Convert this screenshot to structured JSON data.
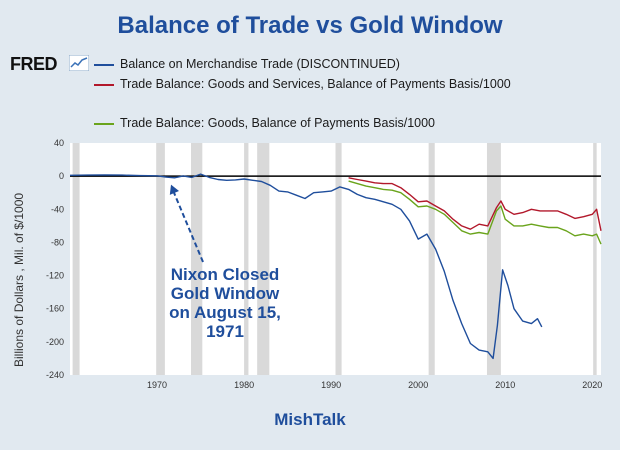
{
  "title": "Balance of Trade vs Gold Window",
  "logo": "FRED",
  "logo_icon": "fred-chart-icon",
  "footer": "MishTalk",
  "annotation": [
    "Nixon Closed",
    "Gold Window",
    "on August 15,",
    "1971"
  ],
  "chart_data": {
    "type": "line",
    "title": "Balance of Trade vs Gold Window",
    "ylabel": "Billions of Dollars , Mil. of $/1000",
    "xlabel": "",
    "xlim": [
      1960,
      2021
    ],
    "ylim": [
      -240,
      40
    ],
    "grid": false,
    "legend_position": "top",
    "x_ticks": [
      "1970",
      "1980",
      "1990",
      "2000",
      "2010",
      "2020"
    ],
    "y_ticks": [
      "40",
      "0",
      "-40",
      "-80",
      "-120",
      "-160",
      "-200",
      "-240"
    ],
    "recessions": [
      [
        1960.3,
        1961.1
      ],
      [
        1969.9,
        1970.9
      ],
      [
        1973.9,
        1975.2
      ],
      [
        1980.0,
        1980.5
      ],
      [
        1981.5,
        1982.9
      ],
      [
        1990.5,
        1991.2
      ],
      [
        2001.2,
        2001.9
      ],
      [
        2007.9,
        2009.5
      ],
      [
        2020.1,
        2020.5
      ]
    ],
    "annotation": "Nixon Closed Gold Window on August 15, 1971",
    "annotation_arrow_target": {
      "x": 1971.6,
      "y": -3
    },
    "series": [
      {
        "name": "Balance on Merchandise Trade (DISCONTINUED)",
        "color": "#1f4e9c",
        "points": [
          [
            1960,
            1
          ],
          [
            1962,
            1.2
          ],
          [
            1964,
            1.5
          ],
          [
            1966,
            1.2
          ],
          [
            1968,
            0.6
          ],
          [
            1970,
            0.4
          ],
          [
            1971,
            -1
          ],
          [
            1972,
            -2
          ],
          [
            1973,
            0.3
          ],
          [
            1974,
            -1.5
          ],
          [
            1975,
            2.5
          ],
          [
            1976,
            -1.5
          ],
          [
            1977,
            -4
          ],
          [
            1978,
            -5
          ],
          [
            1979,
            -4.5
          ],
          [
            1980,
            -3.5
          ],
          [
            1981,
            -5
          ],
          [
            1982,
            -6.5
          ],
          [
            1983,
            -11
          ],
          [
            1984,
            -18
          ],
          [
            1985,
            -19
          ],
          [
            1986,
            -23
          ],
          [
            1987,
            -27
          ],
          [
            1988,
            -20
          ],
          [
            1989,
            -19
          ],
          [
            1990,
            -18
          ],
          [
            1991,
            -13
          ],
          [
            1992,
            -16
          ],
          [
            1993,
            -22
          ],
          [
            1994,
            -26
          ],
          [
            1995,
            -28
          ],
          [
            1996,
            -31
          ],
          [
            1997,
            -34
          ],
          [
            1998,
            -40
          ],
          [
            1999,
            -54
          ],
          [
            2000,
            -76
          ],
          [
            2001,
            -70
          ],
          [
            2002,
            -88
          ],
          [
            2003,
            -115
          ],
          [
            2004,
            -150
          ],
          [
            2005,
            -178
          ],
          [
            2006,
            -202
          ],
          [
            2007,
            -210
          ],
          [
            2008,
            -212
          ],
          [
            2008.6,
            -220
          ],
          [
            2009.1,
            -180
          ],
          [
            2009.7,
            -113
          ],
          [
            2010.3,
            -132
          ],
          [
            2011,
            -160
          ],
          [
            2012,
            -175
          ],
          [
            2013,
            -178
          ],
          [
            2013.7,
            -172
          ],
          [
            2014.2,
            -182
          ]
        ]
      },
      {
        "name": "Trade Balance: Goods and Services, Balance of Payments Basis/1000",
        "color": "#b2182b",
        "points": [
          [
            1992,
            -2
          ],
          [
            1993,
            -4
          ],
          [
            1994,
            -6
          ],
          [
            1995,
            -8
          ],
          [
            1996,
            -9
          ],
          [
            1997,
            -9
          ],
          [
            1998,
            -14
          ],
          [
            1999,
            -22
          ],
          [
            2000,
            -31
          ],
          [
            2001,
            -30
          ],
          [
            2002,
            -36
          ],
          [
            2003,
            -42
          ],
          [
            2004,
            -52
          ],
          [
            2005,
            -60
          ],
          [
            2006,
            -64
          ],
          [
            2007,
            -58
          ],
          [
            2008,
            -60
          ],
          [
            2009,
            -38
          ],
          [
            2009.5,
            -30
          ],
          [
            2010,
            -40
          ],
          [
            2011,
            -46
          ],
          [
            2012,
            -44
          ],
          [
            2013,
            -40
          ],
          [
            2014,
            -42
          ],
          [
            2015,
            -42
          ],
          [
            2016,
            -42
          ],
          [
            2017,
            -46
          ],
          [
            2018,
            -51
          ],
          [
            2019,
            -49
          ],
          [
            2020,
            -46
          ],
          [
            2020.5,
            -40
          ],
          [
            2021,
            -66
          ]
        ]
      },
      {
        "name": "Trade Balance: Goods, Balance of Payments Basis/1000",
        "color": "#6aa41c",
        "points": [
          [
            1992,
            -6
          ],
          [
            1993,
            -9
          ],
          [
            1994,
            -12
          ],
          [
            1995,
            -14
          ],
          [
            1996,
            -16
          ],
          [
            1997,
            -17
          ],
          [
            1998,
            -20
          ],
          [
            1999,
            -28
          ],
          [
            2000,
            -37
          ],
          [
            2001,
            -36
          ],
          [
            2002,
            -40
          ],
          [
            2003,
            -46
          ],
          [
            2004,
            -56
          ],
          [
            2005,
            -66
          ],
          [
            2006,
            -70
          ],
          [
            2007,
            -68
          ],
          [
            2008,
            -70
          ],
          [
            2009,
            -42
          ],
          [
            2009.5,
            -36
          ],
          [
            2010,
            -52
          ],
          [
            2011,
            -60
          ],
          [
            2012,
            -60
          ],
          [
            2013,
            -58
          ],
          [
            2014,
            -60
          ],
          [
            2015,
            -62
          ],
          [
            2016,
            -62
          ],
          [
            2017,
            -66
          ],
          [
            2018,
            -72
          ],
          [
            2019,
            -70
          ],
          [
            2020,
            -72
          ],
          [
            2020.5,
            -70
          ],
          [
            2021,
            -82
          ]
        ]
      }
    ]
  }
}
